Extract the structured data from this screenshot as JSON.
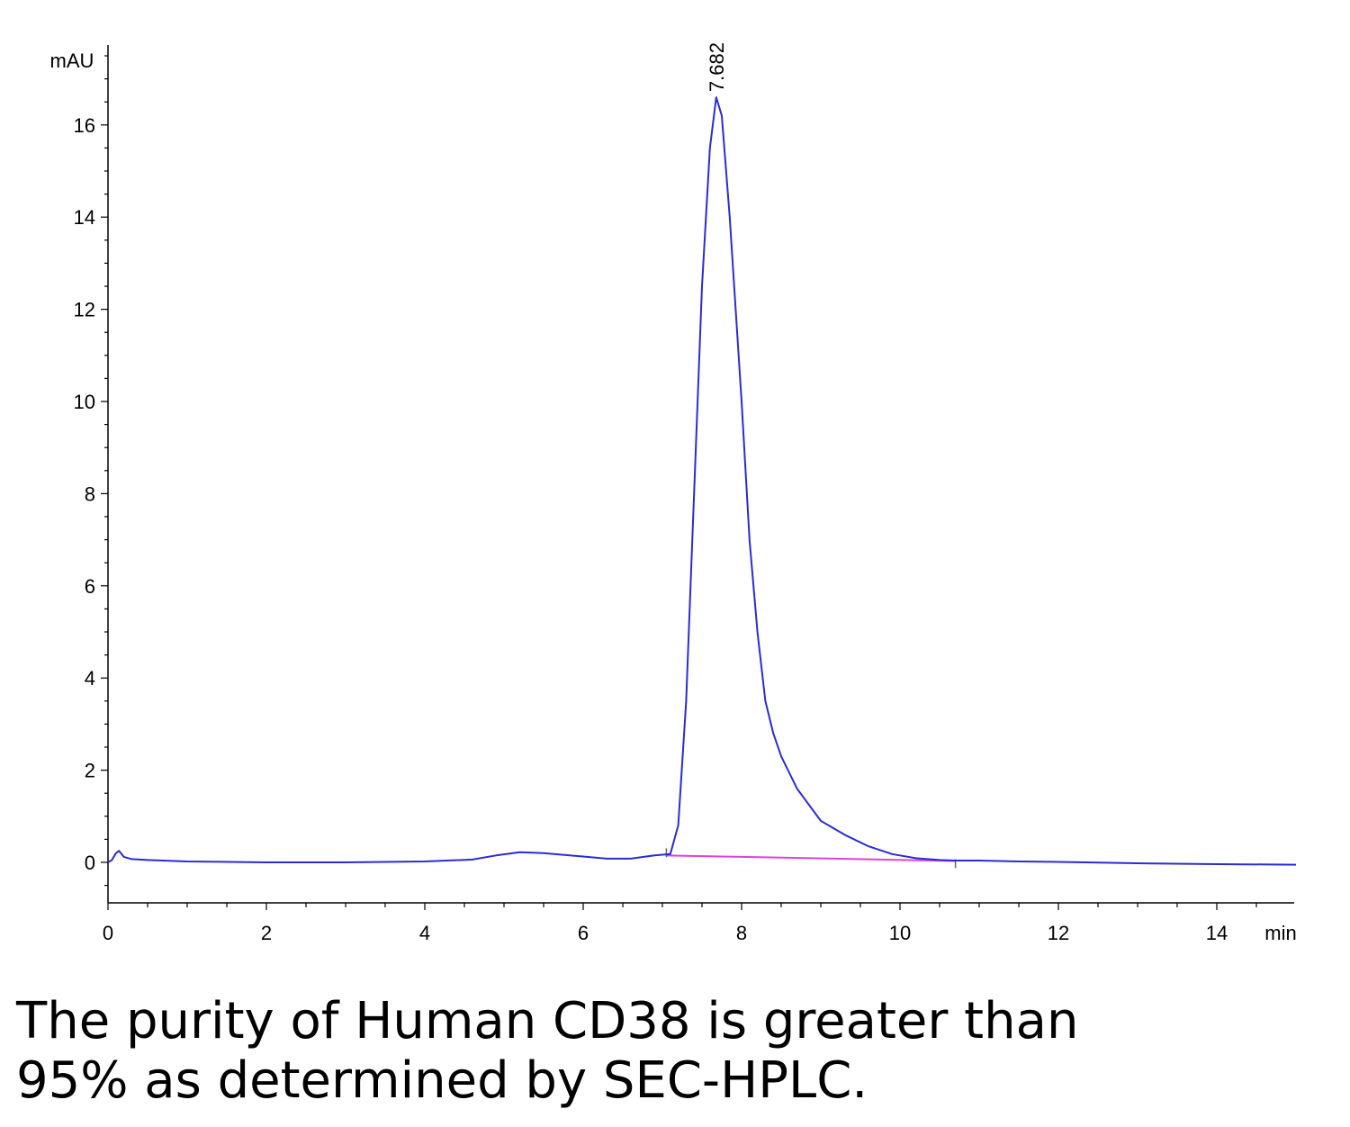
{
  "chart_data": {
    "type": "line",
    "ylabel": "mAU",
    "xlabel": "min",
    "xlim": [
      0,
      15
    ],
    "ylim": [
      -0.9,
      17.5
    ],
    "x_ticks": [
      0,
      2,
      4,
      6,
      8,
      10,
      12,
      14
    ],
    "y_ticks": [
      0,
      2,
      4,
      6,
      8,
      10,
      12,
      14,
      16
    ],
    "grid": false,
    "series": [
      {
        "color": "#2b2bd6",
        "x": [
          0,
          0.05,
          0.1,
          0.14,
          0.2,
          0.3,
          0.5,
          1,
          2,
          3,
          4,
          4.6,
          4.9,
          5.2,
          5.5,
          5.9,
          6.3,
          6.6,
          6.9,
          7.1,
          7.2,
          7.3,
          7.4,
          7.5,
          7.6,
          7.68,
          7.75,
          7.85,
          8.0,
          8.1,
          8.2,
          8.3,
          8.4,
          8.5,
          8.7,
          9.0,
          9.3,
          9.6,
          9.9,
          10.2,
          10.5,
          10.7,
          11.0,
          11.5,
          12,
          13,
          14,
          15
        ],
        "y": [
          0.0,
          0.05,
          0.2,
          0.25,
          0.12,
          0.07,
          0.05,
          0.02,
          0.0,
          0.0,
          0.02,
          0.06,
          0.15,
          0.22,
          0.2,
          0.14,
          0.08,
          0.08,
          0.15,
          0.18,
          0.8,
          3.5,
          8.0,
          12.5,
          15.5,
          16.6,
          16.2,
          14.0,
          10.0,
          7.0,
          5.0,
          3.5,
          2.8,
          2.3,
          1.6,
          0.9,
          0.6,
          0.35,
          0.18,
          0.09,
          0.05,
          0.04,
          0.04,
          0.02,
          0.01,
          -0.02,
          -0.04,
          -0.05
        ]
      }
    ],
    "baseline": {
      "color": "#e040e0",
      "x": [
        7.05,
        10.7
      ],
      "y": [
        0.15,
        0.03
      ]
    },
    "annotations": [
      {
        "text": "7.682",
        "x": 7.682,
        "y": 16.6
      }
    ]
  },
  "caption": {
    "line1": "The purity of Human CD38 is greater than",
    "line2": "95% as determined by SEC-HPLC."
  }
}
